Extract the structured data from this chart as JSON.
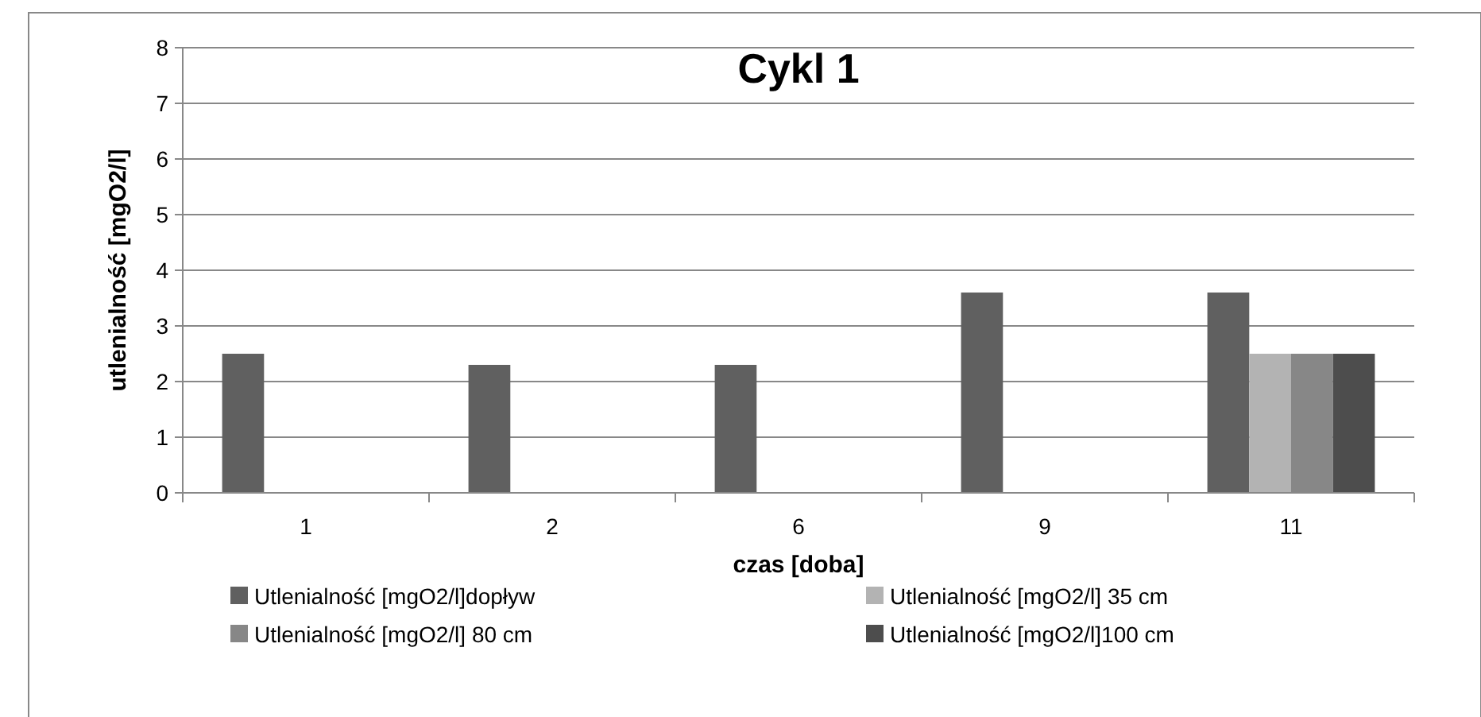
{
  "chart_data": {
    "type": "bar",
    "title": "Cykl 1",
    "xlabel": "czas [doba]",
    "ylabel": "utlenialność [mgO2/l]",
    "categories": [
      "1",
      "2",
      "6",
      "9",
      "11"
    ],
    "series": [
      {
        "name": "Utlenialność [mgO2/l]dopływ",
        "color": "#606060",
        "values": [
          2.5,
          2.3,
          2.3,
          3.6,
          3.6
        ]
      },
      {
        "name": "Utlenialność [mgO2/l] 35 cm",
        "color": "#b3b3b3",
        "values": [
          null,
          null,
          null,
          null,
          2.5
        ]
      },
      {
        "name": "Utlenialność [mgO2/l] 80 cm",
        "color": "#878787",
        "values": [
          null,
          null,
          null,
          null,
          2.5
        ]
      },
      {
        "name": "Utlenialność [mgO2/l]100 cm",
        "color": "#4d4d4d",
        "values": [
          null,
          null,
          null,
          null,
          2.5
        ]
      }
    ],
    "ylim": [
      0,
      8
    ],
    "yticks": [
      0,
      1,
      2,
      3,
      4,
      5,
      6,
      7,
      8
    ],
    "grid": "y",
    "legend": "bottom"
  }
}
